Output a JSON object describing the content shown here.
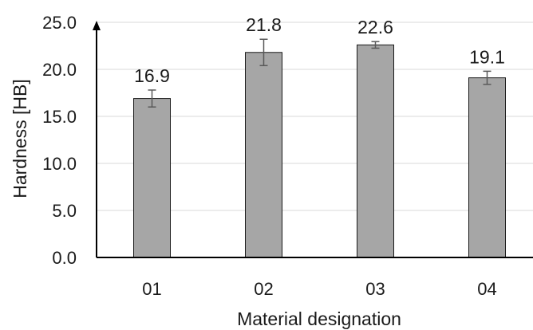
{
  "chart_data": {
    "type": "bar",
    "categories": [
      "01",
      "02",
      "03",
      "04"
    ],
    "values": [
      16.9,
      21.8,
      22.6,
      19.1
    ],
    "errors": [
      0.9,
      1.4,
      0.35,
      0.7
    ],
    "data_labels": [
      "16.9",
      "21.8",
      "22.6",
      "19.1"
    ],
    "title": "",
    "xlabel": "Material designation",
    "ylabel": "Hardness [HB]",
    "ylim": [
      0,
      25
    ],
    "yticks": [
      0,
      5,
      10,
      15,
      20,
      25
    ],
    "ytick_labels": [
      "0.0",
      "5.0",
      "10.0",
      "15.0",
      "20.0",
      "25.0"
    ],
    "grid": true,
    "legend": "none",
    "colors": {
      "bar_fill": "#a6a6a6",
      "bar_stroke": "#1a1a1a",
      "grid": "#d9d9d9",
      "axis": "#000000",
      "error_bar": "#595959"
    }
  }
}
